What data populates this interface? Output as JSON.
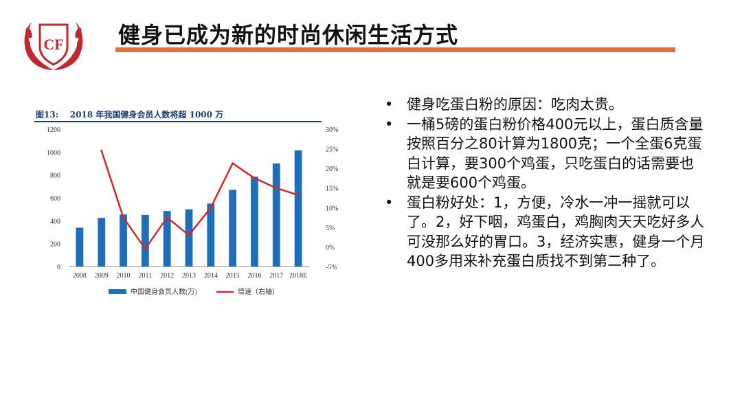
{
  "slide": {
    "logo_text": "CF",
    "title": "健身已成为新的时尚休闲生活方式"
  },
  "figure": {
    "caption": "图13:    2018 年我国健身会员人数将超 1000 万"
  },
  "bullets": [
    "健身吃蛋白粉的原因：吃肉太贵。",
    "一桶5磅的蛋白粉价格400元以上，蛋白质含量按照百分之80计算为1800克；一个全蛋6克蛋白计算，要300个鸡蛋，只吃蛋白的话需要也就是要600个鸡蛋。",
    "蛋白粉好处：1，方便，冷水一冲一摇就可以了。2，好下咽，鸡蛋白，鸡胸肉天天吃好多人可没那么好的胃口。3，经济实惠，健身一个月400多用来补充蛋白质找不到第二种了。"
  ],
  "bullet_marker": "•",
  "colors": {
    "bar": "#1f6fb8",
    "line": "#d4262e",
    "accent_rule": "#e0703c",
    "logo": "#c0282e",
    "caption": "#1a3c6e"
  },
  "chart_data": {
    "type": "bar",
    "categories": [
      "2008",
      "2009",
      "2010",
      "2011",
      "2012",
      "2013",
      "2014",
      "2015",
      "2016",
      "2017",
      "2018E"
    ],
    "series": [
      {
        "name": "中国健身会员人数(万)",
        "type": "bar",
        "axis": "left",
        "values": [
          340,
          425,
          455,
          450,
          485,
          500,
          550,
          670,
          785,
          900,
          1015
        ]
      },
      {
        "name": "增速（右轴）",
        "type": "line",
        "axis": "right",
        "values": [
          null,
          24.5,
          7.5,
          -0.5,
          7.5,
          3.0,
          10.0,
          21.3,
          17.5,
          15.0,
          13.2
        ]
      }
    ],
    "ylim": [
      0,
      1200
    ],
    "yticks": [
      "0",
      "200",
      "400",
      "600",
      "800",
      "1000",
      "1200"
    ],
    "y2lim": [
      -5,
      30
    ],
    "y2ticks": [
      "-5%",
      "0%",
      "5%",
      "10%",
      "15%",
      "20%",
      "25%",
      "30%"
    ],
    "grid": false,
    "legend_position": "bottom"
  }
}
